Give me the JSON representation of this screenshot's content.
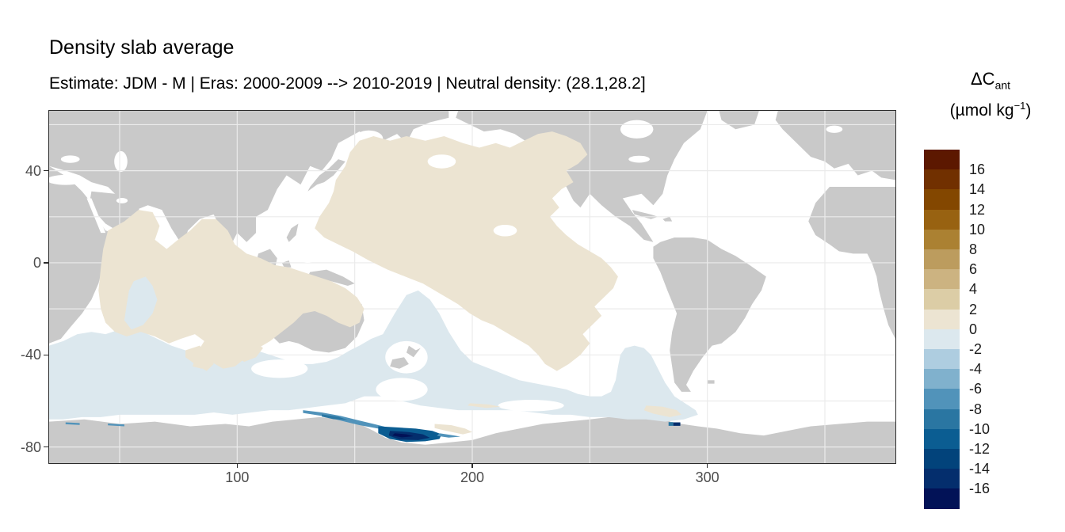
{
  "title": "Density slab average",
  "subtitle": "Estimate: JDM - M | Eras: 2000-2009 --> 2010-2019 | Neutral density: (28.1,28.2]",
  "colors": {
    "background": "#ffffff",
    "land": "#c9c9c9",
    "grid": "#ebebeb",
    "border": "#2b2b2b",
    "axis_text": "#4d4d4d",
    "title_text": "#000000"
  },
  "legend": {
    "title_delta": "ΔC",
    "title_subscript": "ant",
    "units_prefix": "(µmol kg",
    "units_exponent": "−1",
    "units_suffix": ")"
  },
  "chart_data": {
    "type": "heatmap",
    "title": "Density slab average",
    "subtitle": "Estimate: JDM - M | Eras: 2000-2009 --> 2010-2019 | Neutral density: (28.1,28.2]",
    "projection": "equirectangular world map, Pacific-centered (longitude 20-380)",
    "xlim": [
      20,
      380
    ],
    "ylim": [
      -87,
      66
    ],
    "x_ticks": [
      100,
      200,
      300
    ],
    "y_ticks": [
      40,
      0,
      -40,
      -80
    ],
    "grid": {
      "lon_step": 50,
      "lat_step": 20
    },
    "legend": {
      "title": "ΔCant (µmol kg−1)",
      "position": "right",
      "breaks": [
        16,
        14,
        12,
        10,
        8,
        6,
        4,
        2,
        0,
        -2,
        -4,
        -6,
        -8,
        -10,
        -12,
        -14,
        -16
      ],
      "colors": [
        "#5c1800",
        "#713000",
        "#834700",
        "#986211",
        "#ab8132",
        "#bc9c5e",
        "#ccb381",
        "#dccda6",
        "#ece4d2",
        "#dce8ee",
        "#aecde0",
        "#80b1cd",
        "#5193ba",
        "#2a76a2",
        "#0b5d92",
        "#02437b",
        "#042e6d",
        "#021257"
      ]
    },
    "regions": [
      {
        "name": "North Pacific",
        "lon": [
          140,
          262
        ],
        "lat": [
          -45,
          57
        ],
        "value_bin": "(0,2]"
      },
      {
        "name": "Indian Ocean",
        "lon": [
          41,
          154
        ],
        "lat": [
          -47,
          22
        ],
        "value_bin": "(0,2]"
      },
      {
        "name": "Central Indian wedge",
        "lon": [
          52,
          66
        ],
        "lat": [
          -29,
          -6
        ],
        "value_bin": "(-2,0]"
      },
      {
        "name": "Southern Ocean circumpolar band",
        "lon": [
          20,
          300
        ],
        "lat": [
          -68,
          -30
        ],
        "value_bin": "(-2,0]"
      },
      {
        "name": "Wilkes Land coastal band",
        "lon": [
          128,
          167
        ],
        "lat": [
          -73,
          -64
        ],
        "value_bin": "(-8,-4]"
      },
      {
        "name": "Ross Sea shelf",
        "lon": [
          160,
          187
        ],
        "lat": [
          -78,
          -71
        ],
        "value_bin": "(-16,-10]"
      },
      {
        "name": "Patch east of Ross Sea",
        "lon": [
          184,
          200
        ],
        "lat": [
          -75,
          -70
        ],
        "value_bin": "(0,2]"
      },
      {
        "name": "Bellingshausen spot",
        "lon": [
          283,
          289
        ],
        "lat": [
          -71,
          -69
        ],
        "value_bin": "(-16,-10]"
      },
      {
        "name": "Drake Passage patch",
        "lon": [
          273,
          289
        ],
        "lat": [
          -67,
          -62
        ],
        "value_bin": "(0,2]"
      },
      {
        "name": "Atlantic, Arctic, Mediterranean",
        "value_bin": "no data (white)"
      }
    ]
  }
}
